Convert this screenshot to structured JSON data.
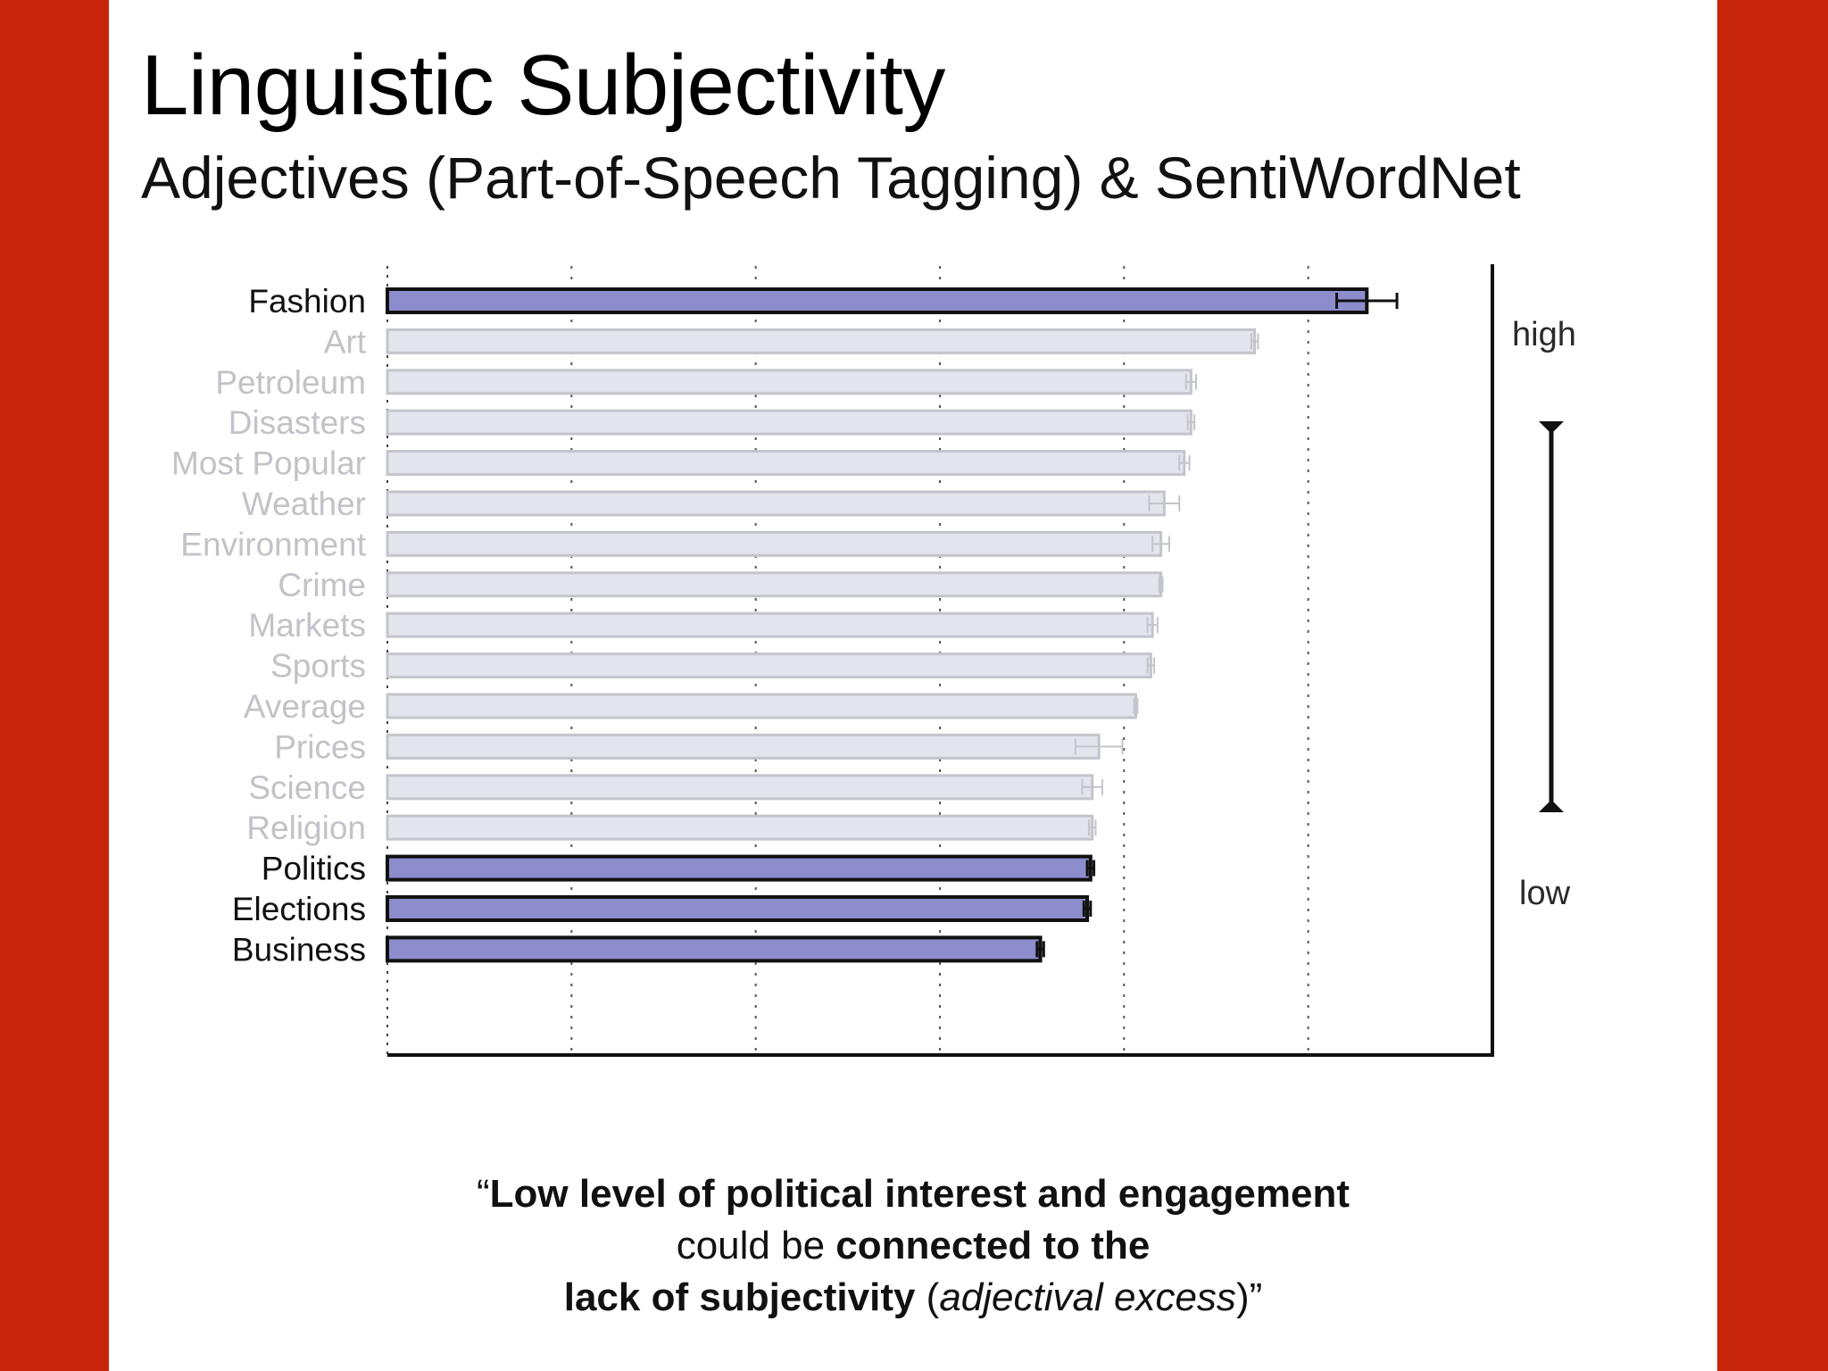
{
  "slide": {
    "title": "Linguistic Subjectivity",
    "subtitle": "Adjectives (Part-of-Speech Tagging) & SentiWordNet",
    "accent_color": "#c8260b"
  },
  "scale": {
    "high_label": "high",
    "low_label": "low"
  },
  "quote": {
    "open_mark": "“",
    "line1_bold": "Low level of political interest and engagement",
    "line2_plain": "could be ",
    "line2_bold": "connected to the",
    "line3_bold": "lack of subjectivity",
    "line3_open_paren": " (",
    "line3_italic": "adjectival excess",
    "line3_close": ")”"
  },
  "chart_data": {
    "type": "bar",
    "orientation": "horizontal",
    "title": "",
    "xlabel": "",
    "ylabel": "",
    "xlim": [
      0,
      6.6
    ],
    "grid": "vertical dotted",
    "highlight_color": "#8d8ccc",
    "muted_color": "#e4e4ec",
    "categories": [
      "Fashion",
      "Art",
      "Petroleum",
      "Disasters",
      "Most Popular",
      "Weather",
      "Environment",
      "Crime",
      "Markets",
      "Sports",
      "Average",
      "Prices",
      "Science",
      "Religion",
      "Politics",
      "Elections",
      "Business"
    ],
    "values": [
      5.85,
      5.18,
      4.8,
      4.8,
      4.76,
      4.64,
      4.62,
      4.62,
      4.57,
      4.56,
      4.47,
      4.25,
      4.21,
      4.21,
      4.2,
      4.18,
      3.9
    ],
    "errors": [
      0.18,
      0.02,
      0.03,
      0.02,
      0.03,
      0.09,
      0.05,
      0.01,
      0.03,
      0.02,
      0.01,
      0.14,
      0.06,
      0.02,
      0.02,
      0.02,
      0.02
    ],
    "highlighted": [
      true,
      false,
      false,
      false,
      false,
      false,
      false,
      false,
      false,
      false,
      false,
      false,
      false,
      false,
      true,
      true,
      true
    ]
  }
}
